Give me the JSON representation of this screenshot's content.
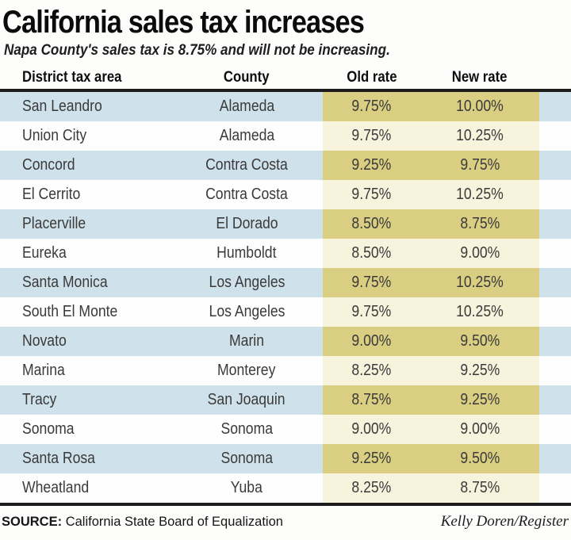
{
  "title": "California sales tax increases",
  "subtitle": "Napa County's sales tax is 8.75% and will not be increasing.",
  "table": {
    "columns": [
      "District tax area",
      "County",
      "Old rate",
      "New rate"
    ],
    "rows": [
      {
        "district": "San Leandro",
        "county": "Alameda",
        "old_rate": "9.75%",
        "new_rate": "10.00%"
      },
      {
        "district": "Union City",
        "county": "Alameda",
        "old_rate": "9.75%",
        "new_rate": "10.25%"
      },
      {
        "district": "Concord",
        "county": "Contra Costa",
        "old_rate": "9.25%",
        "new_rate": "9.75%"
      },
      {
        "district": "El Cerrito",
        "county": "Contra Costa",
        "old_rate": "9.75%",
        "new_rate": "10.25%"
      },
      {
        "district": "Placerville",
        "county": "El Dorado",
        "old_rate": "8.50%",
        "new_rate": "8.75%"
      },
      {
        "district": "Eureka",
        "county": "Humboldt",
        "old_rate": "8.50%",
        "new_rate": "9.00%"
      },
      {
        "district": "Santa Monica",
        "county": "Los Angeles",
        "old_rate": "9.75%",
        "new_rate": "10.25%"
      },
      {
        "district": "South El Monte",
        "county": "Los Angeles",
        "old_rate": "9.75%",
        "new_rate": "10.25%"
      },
      {
        "district": "Novato",
        "county": "Marin",
        "old_rate": "9.00%",
        "new_rate": "9.50%"
      },
      {
        "district": "Marina",
        "county": "Monterey",
        "old_rate": "8.25%",
        "new_rate": "9.25%"
      },
      {
        "district": "Tracy",
        "county": "San Joaquin",
        "old_rate": "8.75%",
        "new_rate": "9.25%"
      },
      {
        "district": "Sonoma",
        "county": "Sonoma",
        "old_rate": "9.00%",
        "new_rate": "9.00%"
      },
      {
        "district": "Santa Rosa",
        "county": "Sonoma",
        "old_rate": "9.25%",
        "new_rate": "9.50%"
      },
      {
        "district": "Wheatland",
        "county": "Yuba",
        "old_rate": "8.25%",
        "new_rate": "8.75%"
      }
    ]
  },
  "footer": {
    "source_label": "SOURCE:",
    "source_text": "California State Board of Equalization",
    "credit": "Kelly Doren/Register"
  },
  "colors": {
    "row_stripe_blue": "#cfe1ea",
    "rate_band_on_blue": "#d9ce82",
    "rate_band_on_white": "#f8f3dd",
    "rule_dark": "#1c1c1c",
    "body_text": "#3a3a3a"
  },
  "chart_data": {
    "type": "table",
    "title": "California sales tax increases",
    "subtitle": "Napa County's sales tax is 8.75% and will not be increasing.",
    "columns": [
      "District tax area",
      "County",
      "Old rate",
      "New rate"
    ],
    "rows": [
      [
        "San Leandro",
        "Alameda",
        "9.75%",
        "10.00%"
      ],
      [
        "Union City",
        "Alameda",
        "9.75%",
        "10.25%"
      ],
      [
        "Concord",
        "Contra Costa",
        "9.25%",
        "9.75%"
      ],
      [
        "El Cerrito",
        "Contra Costa",
        "9.75%",
        "10.25%"
      ],
      [
        "Placerville",
        "El Dorado",
        "8.50%",
        "8.75%"
      ],
      [
        "Eureka",
        "Humboldt",
        "8.50%",
        "9.00%"
      ],
      [
        "Santa Monica",
        "Los Angeles",
        "9.75%",
        "10.25%"
      ],
      [
        "South El Monte",
        "Los Angeles",
        "9.75%",
        "10.25%"
      ],
      [
        "Novato",
        "Marin",
        "9.00%",
        "9.50%"
      ],
      [
        "Marina",
        "Monterey",
        "8.25%",
        "9.25%"
      ],
      [
        "Tracy",
        "San Joaquin",
        "8.75%",
        "9.25%"
      ],
      [
        "Sonoma",
        "Sonoma",
        "9.00%",
        "9.00%"
      ],
      [
        "Santa Rosa",
        "Sonoma",
        "9.25%",
        "9.50%"
      ],
      [
        "Wheatland",
        "Yuba",
        "8.25%",
        "8.75%"
      ]
    ],
    "source": "SOURCE: California State Board of Equalization",
    "credit": "Kelly Doren/Register",
    "layout_hints": {
      "striped_rows": true,
      "highlighted_columns": [
        "Old rate",
        "New rate"
      ]
    }
  }
}
